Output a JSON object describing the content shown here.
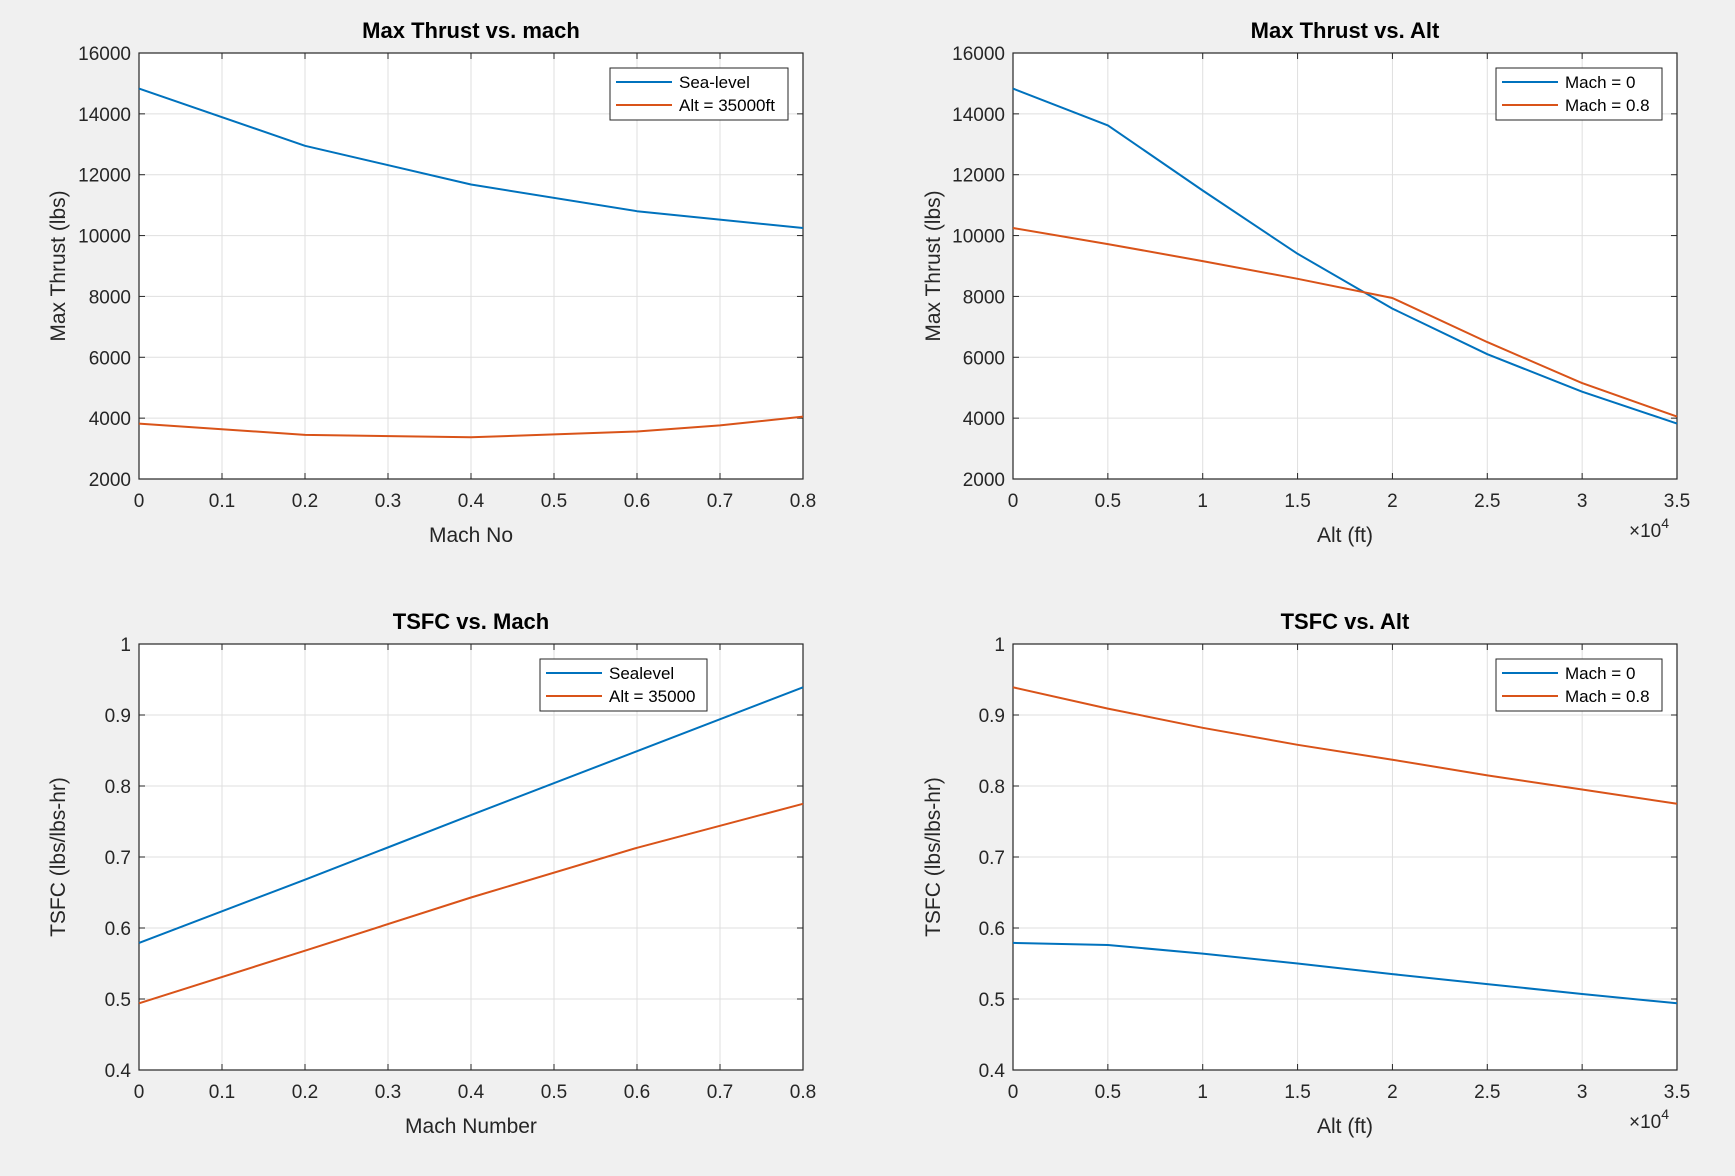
{
  "colors": {
    "blue": "#0072bd",
    "orange": "#d95319",
    "background": "#f0f0f0",
    "grid": "#dfdfdf"
  },
  "chart_data": [
    {
      "type": "line",
      "title": "Max Thrust vs. mach",
      "xlabel": "Mach No",
      "ylabel": "Max Thrust (lbs)",
      "xlim": [
        0,
        0.8
      ],
      "ylim": [
        2000,
        16000
      ],
      "xticks": [
        0,
        0.1,
        0.2,
        0.3,
        0.4,
        0.5,
        0.6,
        0.7,
        0.8
      ],
      "xtick_labels": [
        "0",
        "0.1",
        "0.2",
        "0.3",
        "0.4",
        "0.5",
        "0.6",
        "0.7",
        "0.8"
      ],
      "yticks": [
        2000,
        4000,
        6000,
        8000,
        10000,
        12000,
        14000,
        16000
      ],
      "ytick_labels": [
        "2000",
        "4000",
        "6000",
        "8000",
        "10000",
        "12000",
        "14000",
        "16000"
      ],
      "grid": true,
      "legend_position": "top-right",
      "series": [
        {
          "name": "Sea-level",
          "color": "#0072bd",
          "x": [
            0,
            0.2,
            0.4,
            0.6,
            0.8
          ],
          "y": [
            14830,
            12950,
            11680,
            10800,
            10250
          ]
        },
        {
          "name": "Alt = 35000ft",
          "color": "#d95319",
          "x": [
            0,
            0.2,
            0.4,
            0.6,
            0.7,
            0.8
          ],
          "y": [
            3820,
            3450,
            3370,
            3560,
            3760,
            4050
          ]
        }
      ]
    },
    {
      "type": "line",
      "title": "Max Thrust vs. Alt",
      "xlabel": "Alt (ft)",
      "ylabel": "Max Thrust (lbs)",
      "xlim": [
        0,
        35000
      ],
      "ylim": [
        2000,
        16000
      ],
      "xticks": [
        0,
        5000,
        10000,
        15000,
        20000,
        25000,
        30000,
        35000
      ],
      "xtick_labels": [
        "0",
        "0.5",
        "1",
        "1.5",
        "2",
        "2.5",
        "3",
        "3.5"
      ],
      "yticks": [
        2000,
        4000,
        6000,
        8000,
        10000,
        12000,
        14000,
        16000
      ],
      "ytick_labels": [
        "2000",
        "4000",
        "6000",
        "8000",
        "10000",
        "12000",
        "14000",
        "16000"
      ],
      "x_exponent": "4",
      "grid": true,
      "legend_position": "top-right",
      "series": [
        {
          "name": "Mach = 0",
          "color": "#0072bd",
          "x": [
            0,
            5000,
            10000,
            15000,
            20000,
            25000,
            30000,
            35000
          ],
          "y": [
            14830,
            13620,
            11480,
            9400,
            7600,
            6100,
            4870,
            3820
          ]
        },
        {
          "name": "Mach = 0.8",
          "color": "#d95319",
          "x": [
            0,
            5000,
            10000,
            15000,
            20000,
            25000,
            30000,
            35000
          ],
          "y": [
            10250,
            9720,
            9160,
            8580,
            7950,
            6500,
            5150,
            4050
          ]
        }
      ]
    },
    {
      "type": "line",
      "title": "TSFC vs. Mach",
      "xlabel": "Mach Number",
      "ylabel": "TSFC (lbs/lbs-hr)",
      "xlim": [
        0,
        0.8
      ],
      "ylim": [
        0.4,
        1
      ],
      "xticks": [
        0,
        0.1,
        0.2,
        0.3,
        0.4,
        0.5,
        0.6,
        0.7,
        0.8
      ],
      "xtick_labels": [
        "0",
        "0.1",
        "0.2",
        "0.3",
        "0.4",
        "0.5",
        "0.6",
        "0.7",
        "0.8"
      ],
      "yticks": [
        0.4,
        0.5,
        0.6,
        0.7,
        0.8,
        0.9,
        1
      ],
      "ytick_labels": [
        "0.4",
        "0.5",
        "0.6",
        "0.7",
        "0.8",
        "0.9",
        "1"
      ],
      "grid": true,
      "legend_position": "top-right",
      "series": [
        {
          "name": "Sealevel",
          "color": "#0072bd",
          "x": [
            0,
            0.2,
            0.4,
            0.6,
            0.8
          ],
          "y": [
            0.579,
            0.668,
            0.759,
            0.849,
            0.939
          ]
        },
        {
          "name": "Alt = 35000",
          "color": "#d95319",
          "x": [
            0,
            0.2,
            0.4,
            0.6,
            0.8
          ],
          "y": [
            0.494,
            0.568,
            0.643,
            0.713,
            0.775
          ]
        }
      ]
    },
    {
      "type": "line",
      "title": "TSFC vs. Alt",
      "xlabel": "Alt (ft)",
      "ylabel": "TSFC (lbs/lbs-hr)",
      "xlim": [
        0,
        35000
      ],
      "ylim": [
        0.4,
        1
      ],
      "xticks": [
        0,
        5000,
        10000,
        15000,
        20000,
        25000,
        30000,
        35000
      ],
      "xtick_labels": [
        "0",
        "0.5",
        "1",
        "1.5",
        "2",
        "2.5",
        "3",
        "3.5"
      ],
      "yticks": [
        0.4,
        0.5,
        0.6,
        0.7,
        0.8,
        0.9,
        1
      ],
      "ytick_labels": [
        "0.4",
        "0.5",
        "0.6",
        "0.7",
        "0.8",
        "0.9",
        "1"
      ],
      "x_exponent": "4",
      "grid": true,
      "legend_position": "top-right",
      "series": [
        {
          "name": "Mach = 0",
          "color": "#0072bd",
          "x": [
            0,
            5000,
            10000,
            15000,
            20000,
            25000,
            30000,
            35000
          ],
          "y": [
            0.579,
            0.576,
            0.564,
            0.55,
            0.535,
            0.521,
            0.507,
            0.494
          ]
        },
        {
          "name": "Mach = 0.8",
          "color": "#d95319",
          "x": [
            0,
            5000,
            10000,
            15000,
            20000,
            25000,
            30000,
            35000
          ],
          "y": [
            0.939,
            0.909,
            0.882,
            0.858,
            0.837,
            0.815,
            0.795,
            0.775
          ]
        }
      ]
    }
  ]
}
